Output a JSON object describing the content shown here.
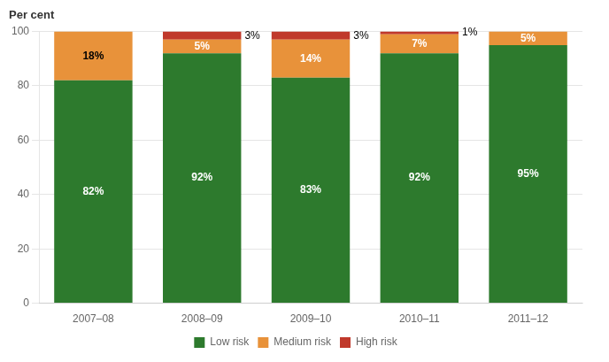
{
  "chart_data": {
    "type": "bar",
    "stacked": true,
    "ylabel": "Per cent",
    "categories": [
      "2007–08",
      "2008–09",
      "2009–10",
      "2010–11",
      "2011–12"
    ],
    "series": [
      {
        "name": "Low risk",
        "color": "#2d7a2d",
        "values": [
          82,
          92,
          83,
          92,
          95
        ],
        "value_labels": [
          "82%",
          "92%",
          "83%",
          "92%",
          "95%"
        ]
      },
      {
        "name": "Medium risk",
        "color": "#e8923a",
        "values": [
          18,
          5,
          14,
          7,
          5
        ],
        "value_labels": [
          "18%",
          "5%",
          "14%",
          "7%",
          "5%"
        ]
      },
      {
        "name": "High risk",
        "color": "#c0392b",
        "values": [
          0,
          3,
          3,
          1,
          0
        ],
        "value_labels": [
          null,
          "3%",
          "3%",
          "1%",
          null
        ]
      }
    ],
    "ylim": [
      0,
      100
    ],
    "yticks": [
      0,
      20,
      40,
      60,
      80,
      100
    ],
    "grid": true,
    "legend": "bottom",
    "data_labels": true
  }
}
